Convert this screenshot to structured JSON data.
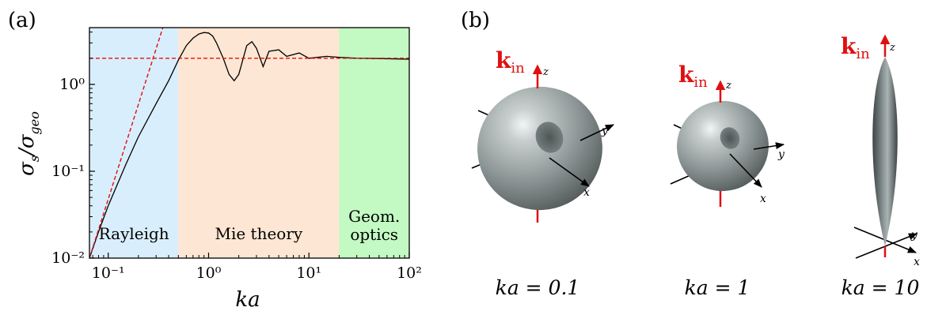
{
  "panels": {
    "a_label": "(a)",
    "b_label": "(b)"
  },
  "chart_data": {
    "type": "line",
    "xlabel": "ka",
    "ylabel": "σs/σgeo",
    "xscale": "log",
    "yscale": "log",
    "xlim": [
      0.065,
      100
    ],
    "ylim": [
      0.01,
      4.5
    ],
    "xticks": [
      {
        "value": 0.1,
        "label": "10⁻¹"
      },
      {
        "value": 1,
        "label": "10⁰"
      },
      {
        "value": 10,
        "label": "10¹"
      },
      {
        "value": 100,
        "label": "10²"
      }
    ],
    "yticks": [
      {
        "value": 0.01,
        "label": "10⁻²"
      },
      {
        "value": 0.1,
        "label": "10⁻¹"
      },
      {
        "value": 1,
        "label": "10⁰"
      }
    ],
    "regions": [
      {
        "label": "Rayleigh",
        "from": 0.065,
        "to": 0.5,
        "color": "#d9eefc"
      },
      {
        "label": "Mie theory",
        "from": 0.5,
        "to": 20,
        "color": "#fde6d3"
      },
      {
        "label": "Geom.\noptics",
        "from": 20,
        "to": 100,
        "color": "#c3f9c3"
      }
    ],
    "series": [
      {
        "style": "solid",
        "color": "#000000",
        "x": [
          0.065,
          0.08,
          0.1,
          0.15,
          0.2,
          0.3,
          0.4,
          0.5,
          0.6,
          0.7,
          0.8,
          0.9,
          1.0,
          1.1,
          1.2,
          1.4,
          1.6,
          1.8,
          2.0,
          2.4,
          2.7,
          3.0,
          3.5,
          4.0,
          5.0,
          6.0,
          8.0,
          10,
          15,
          20,
          30,
          50,
          100
        ],
        "y": [
          0.01,
          0.02,
          0.04,
          0.12,
          0.25,
          0.6,
          1.1,
          1.9,
          2.8,
          3.4,
          3.8,
          3.95,
          3.9,
          3.6,
          3.0,
          2.0,
          1.3,
          1.1,
          1.3,
          2.8,
          3.1,
          2.6,
          1.6,
          2.4,
          2.5,
          2.1,
          2.3,
          2.0,
          2.1,
          2.05,
          2.0,
          1.98,
          1.95
        ]
      },
      {
        "style": "dashed",
        "color": "#e01010",
        "x": [
          0.065,
          0.35
        ],
        "y": [
          0.01,
          4.5
        ]
      },
      {
        "style": "dashed",
        "color": "#e01010",
        "x": [
          0.065,
          100
        ],
        "y": [
          2,
          2
        ]
      }
    ]
  },
  "patterns": {
    "k_label": "k",
    "k_sub": "in",
    "axes": {
      "x": "x",
      "y": "y",
      "z": "z"
    },
    "captions": [
      "ka = 0.1",
      "ka = 1",
      "ka = 10"
    ],
    "arrow_color": "#e01010"
  }
}
